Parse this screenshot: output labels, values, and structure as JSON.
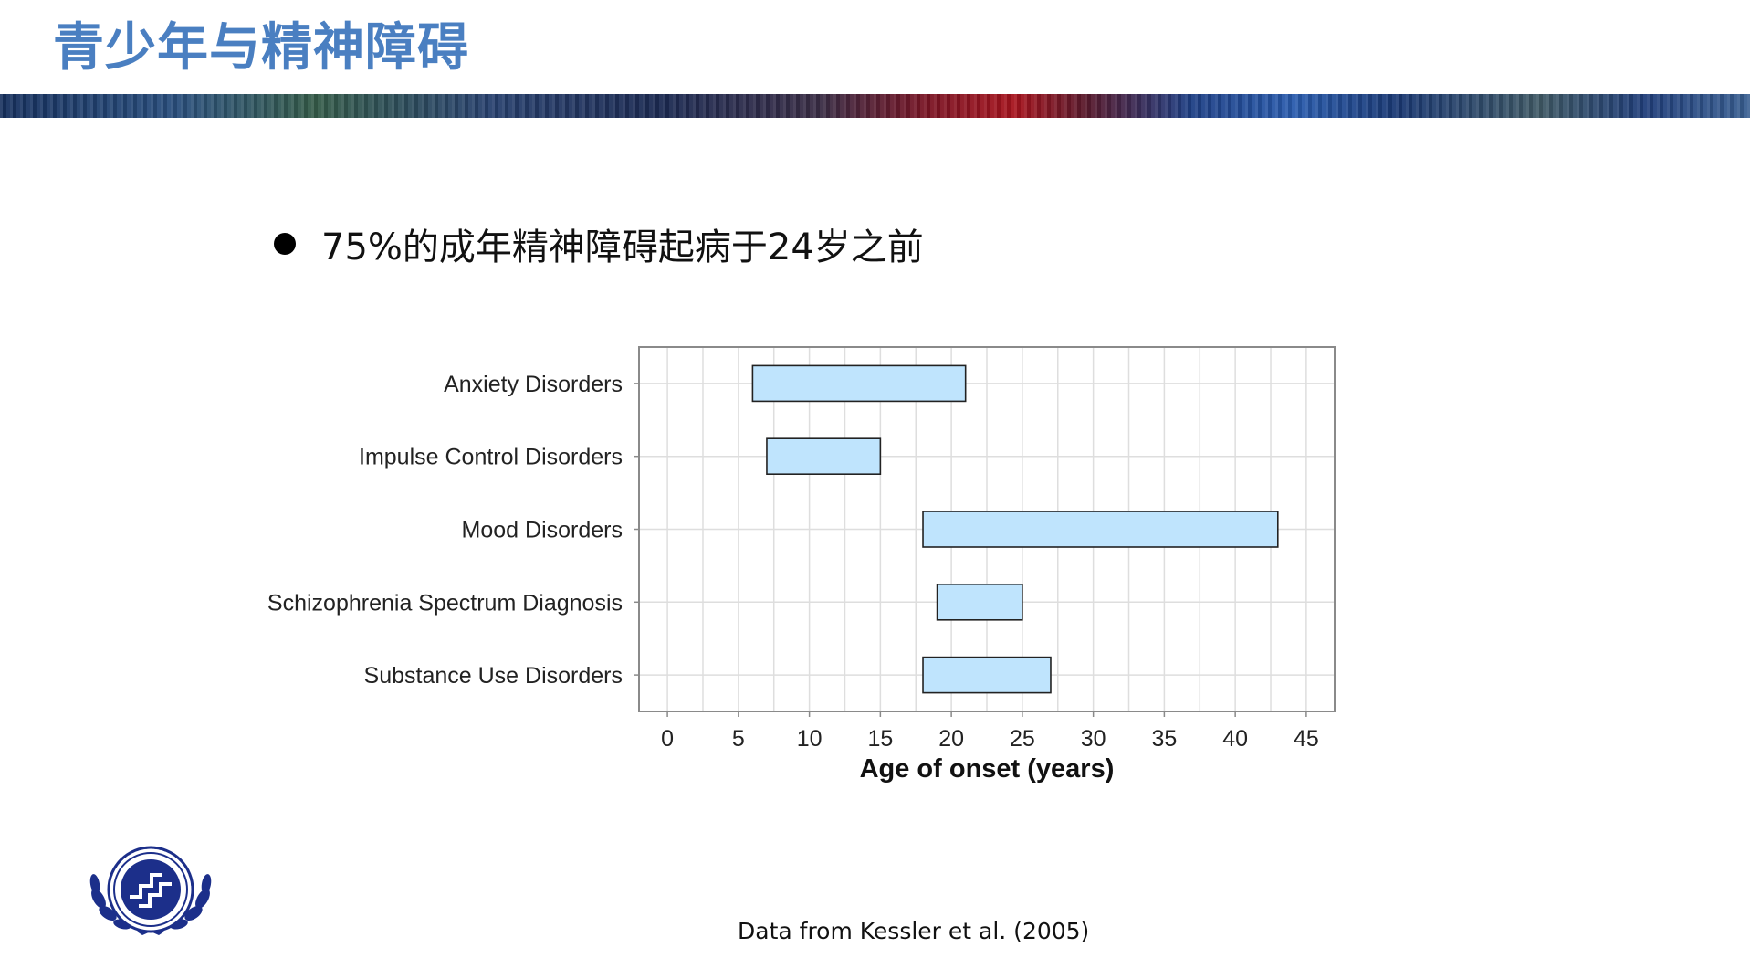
{
  "slide": {
    "title": "青少年与精神障碍",
    "bullet": "75%的成年精神障碍起病于24岁之前",
    "footnote": "Data from Kessler et al. (2005)"
  },
  "logo": {
    "icon": "institute-seal-emblem"
  },
  "colors": {
    "title": "#4a7fc1",
    "bar_fill": "#bfe4fd",
    "bar_stroke": "#222222",
    "grid": "#dedede",
    "frame": "#8a8a8a"
  },
  "chart_data": {
    "type": "bar",
    "orientation": "horizontal",
    "xlabel": "Age of onset (years)",
    "ylabel": "",
    "xlim": [
      -2,
      47
    ],
    "x_ticks": [
      0,
      5,
      10,
      15,
      20,
      25,
      30,
      35,
      40,
      45
    ],
    "grid": true,
    "categories": [
      "Anxiety Disorders",
      "Impulse Control Disorders",
      "Mood Disorders",
      "Schizophrenia Spectrum Diagnosis",
      "Substance Use Disorders"
    ],
    "ranges": [
      [
        6,
        21
      ],
      [
        7,
        15
      ],
      [
        18,
        43
      ],
      [
        19,
        25
      ],
      [
        18,
        27
      ]
    ]
  }
}
